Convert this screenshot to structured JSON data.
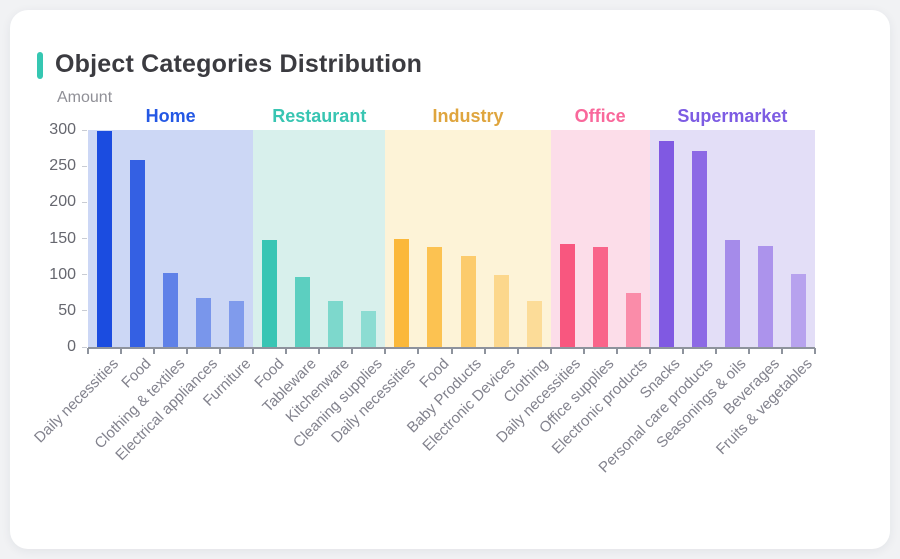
{
  "card": {
    "title": "Object Categories Distribution",
    "accent_color": "#35c7b2"
  },
  "chart_data": {
    "type": "bar",
    "title": "Object Categories Distribution",
    "xlabel": "",
    "ylabel": "Amount",
    "ylim": [
      0,
      300
    ],
    "yticks": [
      0,
      50,
      100,
      150,
      200,
      250,
      300
    ],
    "grid": false,
    "legend_position": "none",
    "axis_color": "#8e939d",
    "groups": [
      {
        "name": "Home",
        "color": "#1b4ce0",
        "band_color": "#ccd7f5",
        "header_color": "#2458e4",
        "bars": [
          {
            "label": "Daily necessities",
            "value": 298,
            "opacity": 1
          },
          {
            "label": "Food",
            "value": 258,
            "opacity": 0.86
          },
          {
            "label": "Clothing & textiles",
            "value": 102,
            "opacity": 0.62
          },
          {
            "label": "Electrical appliances",
            "value": 68,
            "opacity": 0.47
          },
          {
            "label": "Furniture",
            "value": 63,
            "opacity": 0.43
          }
        ]
      },
      {
        "name": "Restaurant",
        "color": "#38c5b4",
        "band_color": "#d8f0ec",
        "header_color": "#38c5b2",
        "bars": [
          {
            "label": "Food",
            "value": 148,
            "opacity": 1
          },
          {
            "label": "Tableware",
            "value": 97,
            "opacity": 0.78
          },
          {
            "label": "Kitchenware",
            "value": 64,
            "opacity": 0.57
          },
          {
            "label": "Cleaning supplies",
            "value": 50,
            "opacity": 0.47
          }
        ]
      },
      {
        "name": "Industry",
        "color": "#fbb83a",
        "band_color": "#fdf3d7",
        "header_color": "#dfa53e",
        "bars": [
          {
            "label": "Daily necessities",
            "value": 150,
            "opacity": 1
          },
          {
            "label": "Food",
            "value": 138,
            "opacity": 0.85
          },
          {
            "label": "Baby Products",
            "value": 126,
            "opacity": 0.68
          },
          {
            "label": "Electronic Devices",
            "value": 99,
            "opacity": 0.48
          },
          {
            "label": "Clothing",
            "value": 63,
            "opacity": 0.4
          }
        ]
      },
      {
        "name": "Office",
        "color": "#f8577f",
        "band_color": "#fcdde9",
        "header_color": "#f9689b",
        "bars": [
          {
            "label": "Daily necessities",
            "value": 142,
            "opacity": 1
          },
          {
            "label": "Office supplies",
            "value": 138,
            "opacity": 0.9
          },
          {
            "label": "Electronic products",
            "value": 75,
            "opacity": 0.6
          }
        ]
      },
      {
        "name": "Supermarket",
        "color": "#8059e2",
        "band_color": "#e3def7",
        "header_color": "#7d5ce3",
        "bars": [
          {
            "label": "Snacks",
            "value": 285,
            "opacity": 1
          },
          {
            "label": "Personal care products",
            "value": 271,
            "opacity": 0.88
          },
          {
            "label": "Seasonings & oils",
            "value": 148,
            "opacity": 0.62
          },
          {
            "label": "Beverages",
            "value": 140,
            "opacity": 0.56
          },
          {
            "label": "Fruits & vegetables",
            "value": 101,
            "opacity": 0.45
          }
        ]
      }
    ]
  }
}
